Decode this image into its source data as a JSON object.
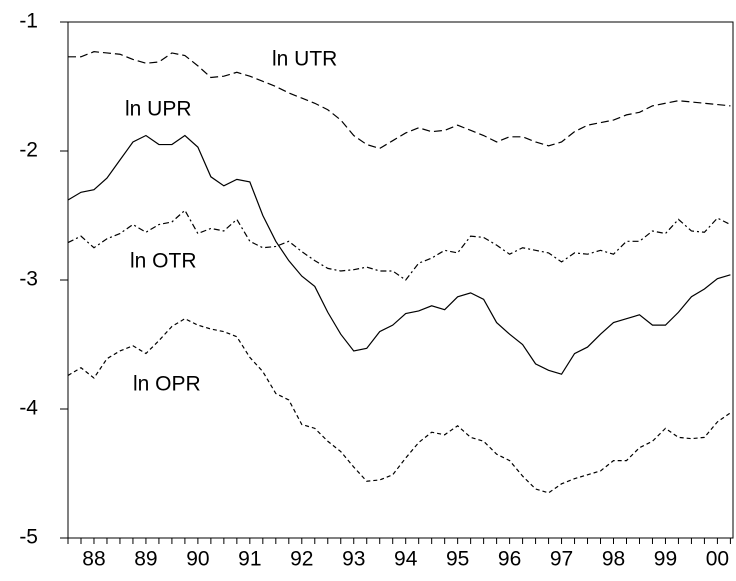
{
  "chart_data": {
    "type": "line",
    "x": [
      1988,
      1988.25,
      1988.5,
      1988.75,
      1989,
      1989.25,
      1989.5,
      1989.75,
      1990,
      1990.25,
      1990.5,
      1990.75,
      1991,
      1991.25,
      1991.5,
      1991.75,
      1992,
      1992.25,
      1992.5,
      1992.75,
      1993,
      1993.25,
      1993.5,
      1993.75,
      1994,
      1994.25,
      1994.5,
      1994.75,
      1995,
      1995.25,
      1995.5,
      1995.75,
      1996,
      1996.25,
      1996.5,
      1996.75,
      1997,
      1997.25,
      1997.5,
      1997.75,
      1998,
      1998.25,
      1998.5,
      1998.75,
      1999,
      1999.25,
      1999.5,
      1999.75,
      2000,
      2000.25,
      2000.5,
      2000.75
    ],
    "series": [
      {
        "name": "ln UTR",
        "color": "#000000",
        "style": "dashed",
        "values": [
          -1.27,
          -1.27,
          -1.23,
          -1.24,
          -1.25,
          -1.29,
          -1.32,
          -1.31,
          -1.24,
          -1.26,
          -1.34,
          -1.43,
          -1.42,
          -1.39,
          -1.42,
          -1.46,
          -1.5,
          -1.55,
          -1.59,
          -1.63,
          -1.68,
          -1.76,
          -1.88,
          -1.95,
          -1.98,
          -1.92,
          -1.86,
          -1.82,
          -1.85,
          -1.84,
          -1.8,
          -1.84,
          -1.88,
          -1.93,
          -1.89,
          -1.89,
          -1.93,
          -1.96,
          -1.93,
          -1.85,
          -1.8,
          -1.78,
          -1.76,
          -1.72,
          -1.7,
          -1.65,
          -1.63,
          -1.61,
          -1.62,
          -1.63,
          -1.64,
          -1.65
        ]
      },
      {
        "name": "ln UPR",
        "color": "#000000",
        "style": "solid",
        "values": [
          -2.38,
          -2.32,
          -2.3,
          -2.21,
          -2.07,
          -1.93,
          -1.88,
          -1.95,
          -1.95,
          -1.88,
          -1.97,
          -2.2,
          -2.27,
          -2.22,
          -2.24,
          -2.5,
          -2.7,
          -2.85,
          -2.97,
          -3.05,
          -3.25,
          -3.42,
          -3.55,
          -3.53,
          -3.4,
          -3.35,
          -3.26,
          -3.24,
          -3.2,
          -3.23,
          -3.13,
          -3.1,
          -3.15,
          -3.33,
          -3.42,
          -3.5,
          -3.65,
          -3.7,
          -3.73,
          -3.57,
          -3.52,
          -3.42,
          -3.33,
          -3.3,
          -3.27,
          -3.35,
          -3.35,
          -3.25,
          -3.13,
          -3.07,
          -2.99,
          -2.96
        ]
      },
      {
        "name": "ln OTR",
        "color": "#000000",
        "style": "dashdot",
        "values": [
          -2.71,
          -2.66,
          -2.75,
          -2.68,
          -2.64,
          -2.57,
          -2.63,
          -2.57,
          -2.55,
          -2.46,
          -2.64,
          -2.6,
          -2.62,
          -2.53,
          -2.7,
          -2.75,
          -2.74,
          -2.7,
          -2.78,
          -2.85,
          -2.91,
          -2.93,
          -2.92,
          -2.9,
          -2.93,
          -2.93,
          -3.0,
          -2.87,
          -2.83,
          -2.77,
          -2.79,
          -2.66,
          -2.67,
          -2.73,
          -2.8,
          -2.75,
          -2.77,
          -2.79,
          -2.86,
          -2.79,
          -2.8,
          -2.77,
          -2.8,
          -2.7,
          -2.7,
          -2.62,
          -2.64,
          -2.53,
          -2.62,
          -2.63,
          -2.52,
          -2.57
        ]
      },
      {
        "name": "ln OPR",
        "color": "#000000",
        "style": "dotted",
        "values": [
          -3.74,
          -3.68,
          -3.76,
          -3.61,
          -3.55,
          -3.51,
          -3.57,
          -3.47,
          -3.36,
          -3.3,
          -3.35,
          -3.38,
          -3.4,
          -3.44,
          -3.6,
          -3.71,
          -3.88,
          -3.93,
          -4.12,
          -4.15,
          -4.25,
          -4.33,
          -4.45,
          -4.56,
          -4.55,
          -4.51,
          -4.38,
          -4.26,
          -4.18,
          -4.2,
          -4.13,
          -4.22,
          -4.25,
          -4.35,
          -4.4,
          -4.52,
          -4.62,
          -4.65,
          -4.58,
          -4.54,
          -4.51,
          -4.48,
          -4.4,
          -4.4,
          -4.3,
          -4.25,
          -4.15,
          -4.22,
          -4.23,
          -4.22,
          -4.1,
          -4.03
        ]
      }
    ],
    "xlim": [
      1988,
      2000.8
    ],
    "xticks": [
      {
        "value": 1988.5,
        "label": "88"
      },
      {
        "value": 1989.5,
        "label": "89"
      },
      {
        "value": 1990.5,
        "label": "90"
      },
      {
        "value": 1991.5,
        "label": "91"
      },
      {
        "value": 1992.5,
        "label": "92"
      },
      {
        "value": 1993.5,
        "label": "93"
      },
      {
        "value": 1994.5,
        "label": "94"
      },
      {
        "value": 1995.5,
        "label": "95"
      },
      {
        "value": 1996.5,
        "label": "96"
      },
      {
        "value": 1997.5,
        "label": "97"
      },
      {
        "value": 1998.5,
        "label": "98"
      },
      {
        "value": 1999.5,
        "label": "99"
      },
      {
        "value": 2000.5,
        "label": "00"
      }
    ],
    "ylim": [
      -5,
      -1
    ],
    "yticks": [
      -5,
      -4,
      -3,
      -2,
      -1
    ],
    "grid": false
  }
}
